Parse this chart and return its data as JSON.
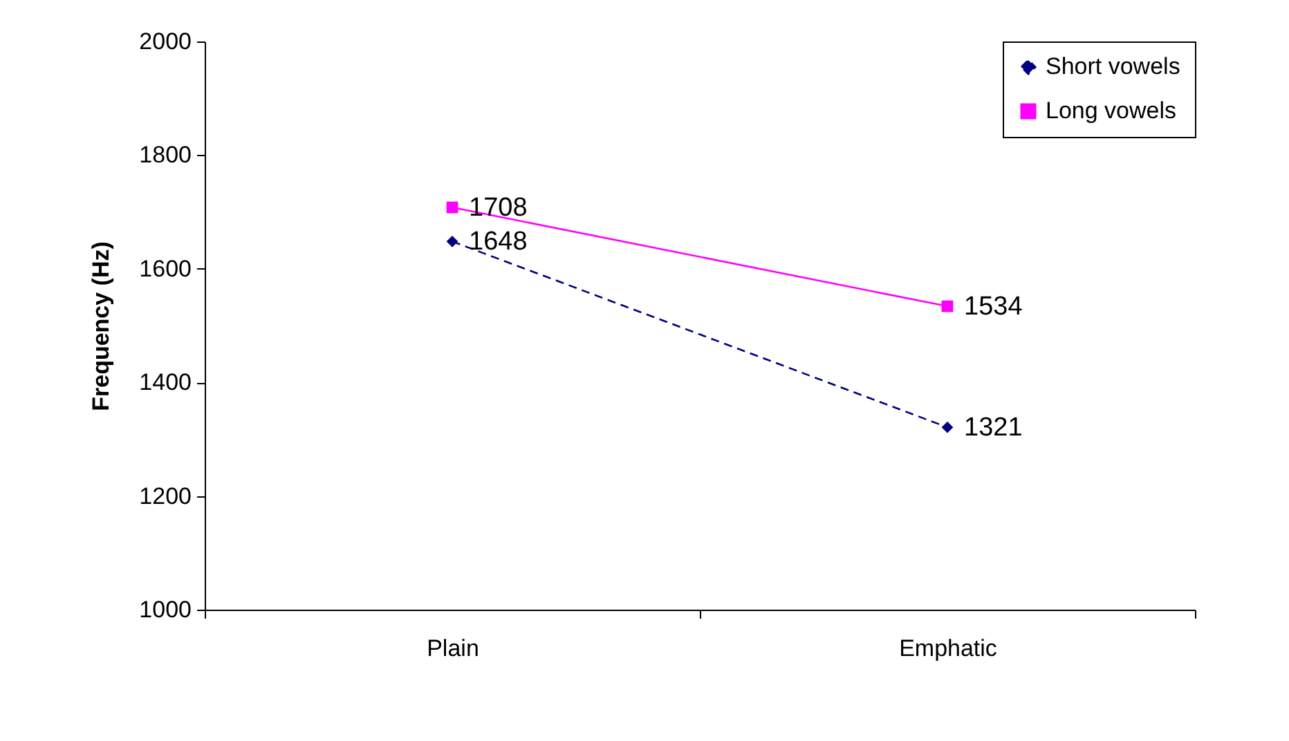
{
  "chart_data": {
    "type": "line",
    "ylabel": "Frequency (Hz)",
    "categories": [
      "Plain",
      "Emphatic"
    ],
    "series": [
      {
        "name": "Short vowels",
        "color": "#000080",
        "values": [
          1648,
          1321
        ],
        "marker": "diamond",
        "line_style": "dashed"
      },
      {
        "name": "Long vowels",
        "color": "#ff00ff",
        "values": [
          1708,
          1534
        ],
        "marker": "square",
        "line_style": "solid"
      }
    ],
    "ylim": [
      1000,
      2000
    ],
    "yticks": [
      1000,
      1200,
      1400,
      1600,
      1800,
      2000
    ],
    "grid": false,
    "legend": "top right",
    "data_labels": true
  }
}
